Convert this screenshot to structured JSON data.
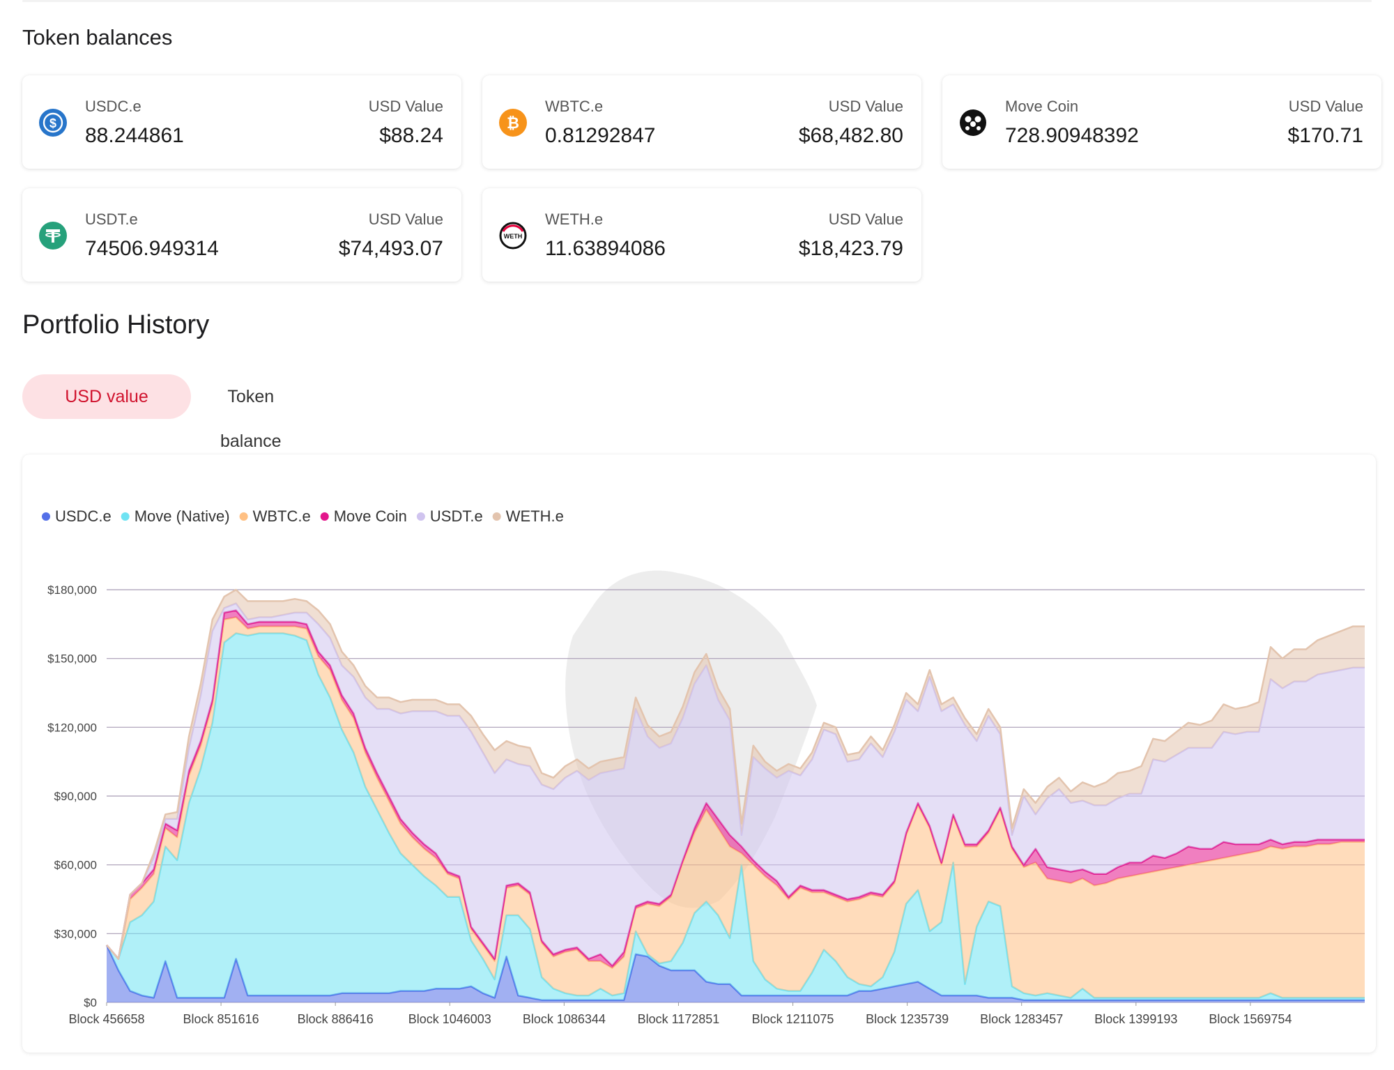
{
  "token_balances": {
    "title": "Token balances",
    "usd_label": "USD Value",
    "cards": [
      {
        "name": "USDC.e",
        "amount": "88.244861",
        "usd": "$88.24",
        "icon": "usdc-icon",
        "color": "#2775ca"
      },
      {
        "name": "WBTC.e",
        "amount": "0.81292847",
        "usd": "$68,482.80",
        "icon": "bitcoin-icon",
        "color": "#f7931a"
      },
      {
        "name": "Move Coin",
        "amount": "728.90948392",
        "usd": "$170.71",
        "icon": "move-coin-icon",
        "color": "#111111"
      },
      {
        "name": "USDT.e",
        "amount": "74506.949314",
        "usd": "$74,493.07",
        "icon": "tether-icon",
        "color": "#26a17b"
      },
      {
        "name": "WETH.e",
        "amount": "11.63894086",
        "usd": "$18,423.79",
        "icon": "weth-icon",
        "color": "#e5003c"
      }
    ]
  },
  "portfolio_history": {
    "title": "Portfolio History",
    "tabs": {
      "active": "USD value",
      "inactive": "Token balance"
    }
  },
  "chart_data": {
    "type": "area",
    "stacked": true,
    "legend_position": "top-left",
    "grid": true,
    "y_unit": "USD",
    "ylim": [
      0,
      180000
    ],
    "y_ticks": [
      0,
      30000,
      60000,
      90000,
      120000,
      150000,
      180000
    ],
    "y_tick_labels": [
      "$0",
      "$30,000",
      "$60,000",
      "$90,000",
      "$120,000",
      "$150,000",
      "$180,000"
    ],
    "x_tick_labels": [
      "Block 456658",
      "Block 851616",
      "Block 886416",
      "Block 1046003",
      "Block 1086344",
      "Block 1172851",
      "Block 1211075",
      "Block 1235739",
      "Block 1283457",
      "Block 1399193",
      "Block 1569754"
    ],
    "x": [
      0,
      0.5,
      1,
      1.5,
      2,
      2.5,
      3,
      3.5,
      4,
      4.5,
      5,
      5.5,
      6,
      6.5,
      7,
      7.5,
      8,
      8.5,
      9,
      9.5,
      10,
      10.5,
      11,
      11.5,
      12,
      12.5,
      13,
      13.5,
      14,
      14.5,
      15,
      15.5,
      16,
      16.5,
      17,
      17.5,
      18,
      18.5,
      19,
      19.5,
      20,
      20.5,
      21,
      21.5,
      22,
      22.5,
      23,
      23.5,
      24,
      24.5,
      25,
      25.5,
      26,
      26.5,
      27,
      27.5,
      28,
      28.5,
      29,
      29.5,
      30,
      30.5,
      31,
      31.5,
      32,
      32.5,
      33,
      33.5,
      34,
      34.5,
      35,
      35.5,
      36,
      36.5,
      37,
      37.5,
      38,
      38.5,
      39,
      39.5,
      40,
      40.5,
      41,
      41.5,
      42,
      42.5,
      43,
      43.5,
      44,
      44.5,
      45,
      45.5,
      46,
      46.5,
      47,
      47.5,
      48,
      48.5,
      49,
      49.5,
      50,
      50.5,
      51,
      51.5,
      52,
      52.5,
      53,
      53.5
    ],
    "series": [
      {
        "name": "USDC.e",
        "color": "#5470e8",
        "values": [
          25000,
          14000,
          5000,
          3000,
          2000,
          18000,
          2000,
          2000,
          2000,
          2000,
          2000,
          19000,
          3000,
          3000,
          3000,
          3000,
          3000,
          3000,
          3000,
          3000,
          4000,
          4000,
          4000,
          4000,
          4000,
          5000,
          5000,
          5000,
          6000,
          6000,
          6000,
          7000,
          4000,
          2000,
          20000,
          3000,
          2000,
          1000,
          1000,
          1000,
          1000,
          1000,
          1000,
          1000,
          1000,
          21000,
          20000,
          16000,
          14000,
          14000,
          14000,
          9000,
          8000,
          8000,
          3000,
          3000,
          3000,
          3000,
          3000,
          3000,
          3000,
          3000,
          3000,
          3000,
          5000,
          5000,
          6000,
          7000,
          8000,
          9000,
          6000,
          3000,
          3000,
          3000,
          3000,
          2000,
          2000,
          2000,
          1000,
          1000,
          1000,
          1000,
          1000,
          1000,
          1000,
          1000,
          1000,
          1000,
          1000,
          1000,
          1000,
          1000,
          1000,
          1000,
          1000,
          1000,
          1000,
          1000,
          1000,
          1000,
          1000,
          1000,
          1000,
          1000,
          1000,
          1000,
          1000,
          1000
        ]
      },
      {
        "name": "Move (Native)",
        "color": "#6fe3f3",
        "values": [
          0,
          5000,
          30000,
          35000,
          42000,
          50000,
          60000,
          85000,
          100000,
          120000,
          155000,
          142000,
          157000,
          158000,
          158000,
          158000,
          157000,
          155000,
          140000,
          130000,
          115000,
          105000,
          90000,
          80000,
          70000,
          60000,
          55000,
          50000,
          45000,
          40000,
          40000,
          20000,
          15000,
          8000,
          18000,
          35000,
          30000,
          10000,
          5000,
          3000,
          2000,
          2000,
          5000,
          2000,
          3000,
          10000,
          1000,
          1000,
          4000,
          12000,
          25000,
          35000,
          30000,
          20000,
          57000,
          15000,
          7000,
          3000,
          2000,
          2000,
          10000,
          20000,
          15000,
          8000,
          3000,
          2000,
          5000,
          15000,
          35000,
          40000,
          25000,
          32000,
          58000,
          5000,
          30000,
          42000,
          40000,
          5000,
          3000,
          2000,
          3000,
          2000,
          1000,
          5000,
          1000,
          1000,
          1000,
          1000,
          1000,
          1000,
          1000,
          1000,
          1000,
          1000,
          1000,
          1000,
          1000,
          1000,
          1000,
          3000,
          1000,
          1000,
          1000,
          1000,
          1000,
          1000,
          1000,
          1000
        ]
      },
      {
        "name": "WBTC.e",
        "color": "#ffc083",
        "values": [
          0,
          0,
          10000,
          12000,
          12000,
          8000,
          10000,
          12000,
          10000,
          8000,
          10000,
          7000,
          3000,
          3000,
          3000,
          3000,
          4000,
          5000,
          8000,
          12000,
          13000,
          15000,
          15000,
          14000,
          14000,
          13000,
          12000,
          12000,
          12000,
          10000,
          8000,
          5000,
          6000,
          8000,
          12000,
          13000,
          15000,
          15000,
          14000,
          18000,
          20000,
          15000,
          12000,
          12000,
          16000,
          10000,
          22000,
          25000,
          28000,
          35000,
          35000,
          40000,
          38000,
          40000,
          5000,
          42000,
          45000,
          45000,
          40000,
          45000,
          35000,
          25000,
          28000,
          33000,
          37000,
          40000,
          35000,
          30000,
          30000,
          37000,
          45000,
          25000,
          20000,
          60000,
          35000,
          30000,
          42000,
          60000,
          55000,
          58000,
          50000,
          50000,
          50000,
          48000,
          49000,
          50000,
          52000,
          53000,
          54000,
          55000,
          56000,
          57000,
          58000,
          59000,
          60000,
          61000,
          62000,
          63000,
          64000,
          64000,
          65000,
          66000,
          66000,
          67000,
          67000,
          68000,
          68000,
          68000
        ]
      },
      {
        "name": "Move Coin",
        "color": "#e3168c",
        "values": [
          0,
          0,
          2000,
          2000,
          2000,
          2000,
          3000,
          2000,
          2000,
          2000,
          3000,
          3000,
          2000,
          2000,
          2000,
          2000,
          2000,
          2000,
          2000,
          2000,
          2000,
          2000,
          2000,
          2000,
          2000,
          2000,
          2000,
          2000,
          2000,
          1000,
          1000,
          1000,
          1000,
          1000,
          1000,
          1000,
          1000,
          1000,
          1000,
          1000,
          1000,
          1000,
          3000,
          1000,
          2000,
          1000,
          1000,
          1000,
          1000,
          1000,
          2000,
          3000,
          4000,
          5000,
          3000,
          2000,
          2000,
          2000,
          1000,
          1000,
          1000,
          1000,
          1000,
          1000,
          1000,
          1000,
          1000,
          1000,
          1000,
          1000,
          1000,
          1000,
          1000,
          1000,
          1000,
          1000,
          1000,
          1000,
          1000,
          6000,
          5000,
          5000,
          5000,
          4000,
          5000,
          4000,
          5000,
          6000,
          5000,
          7000,
          5000,
          6000,
          8000,
          6000,
          5000,
          7000,
          5000,
          4000,
          3000,
          3000,
          2000,
          2000,
          2000,
          2000,
          2000,
          1000,
          1000,
          1000
        ]
      },
      {
        "name": "USDT.e",
        "color": "#d0c4ef",
        "values": [
          0,
          0,
          0,
          0,
          5000,
          2000,
          5000,
          10000,
          20000,
          30000,
          2000,
          3000,
          2000,
          2000,
          2000,
          3000,
          4000,
          5000,
          12000,
          12000,
          13000,
          16000,
          22000,
          28000,
          38000,
          46000,
          53000,
          58000,
          62000,
          68000,
          70000,
          85000,
          83000,
          81000,
          55000,
          52000,
          55000,
          68000,
          72000,
          75000,
          77000,
          78000,
          79000,
          85000,
          80000,
          86000,
          72000,
          68000,
          66000,
          62000,
          63000,
          60000,
          52000,
          50000,
          5000,
          45000,
          45000,
          45000,
          55000,
          48000,
          57000,
          70000,
          70000,
          60000,
          60000,
          65000,
          60000,
          65000,
          58000,
          40000,
          65000,
          66000,
          48000,
          52000,
          45000,
          50000,
          32000,
          5000,
          30000,
          15000,
          30000,
          35000,
          30000,
          30000,
          30000,
          30000,
          30000,
          30000,
          30000,
          42000,
          42000,
          43000,
          43000,
          44000,
          44000,
          48000,
          48000,
          49000,
          49000,
          70000,
          68000,
          70000,
          70000,
          72000,
          73000,
          74000,
          75000,
          75000
        ]
      },
      {
        "name": "WETH.e",
        "color": "#e3c4ae",
        "values": [
          0,
          0,
          0,
          0,
          2000,
          2000,
          3000,
          5000,
          5000,
          5000,
          5000,
          6000,
          8000,
          7000,
          7000,
          6000,
          6000,
          5000,
          6000,
          6000,
          6000,
          5000,
          5000,
          5000,
          5000,
          5000,
          5000,
          5000,
          5000,
          5000,
          5000,
          7000,
          8000,
          10000,
          8000,
          8000,
          8000,
          5000,
          5000,
          5000,
          5000,
          5000,
          5000,
          5000,
          5000,
          5000,
          5000,
          5000,
          5000,
          5000,
          5000,
          5000,
          5000,
          5000,
          5000,
          5000,
          3000,
          3000,
          3000,
          3000,
          3000,
          3000,
          3000,
          3000,
          3000,
          3000,
          3000,
          3000,
          3000,
          3000,
          3000,
          3000,
          3000,
          3000,
          3000,
          3000,
          3000,
          3000,
          3000,
          5000,
          5000,
          5000,
          5000,
          8000,
          8000,
          10000,
          11000,
          10000,
          12000,
          9000,
          9000,
          10000,
          11000,
          10000,
          12000,
          12000,
          11000,
          11000,
          13000,
          14000,
          13000,
          14000,
          14000,
          15000,
          16000,
          17000,
          18000,
          18000
        ]
      }
    ]
  }
}
